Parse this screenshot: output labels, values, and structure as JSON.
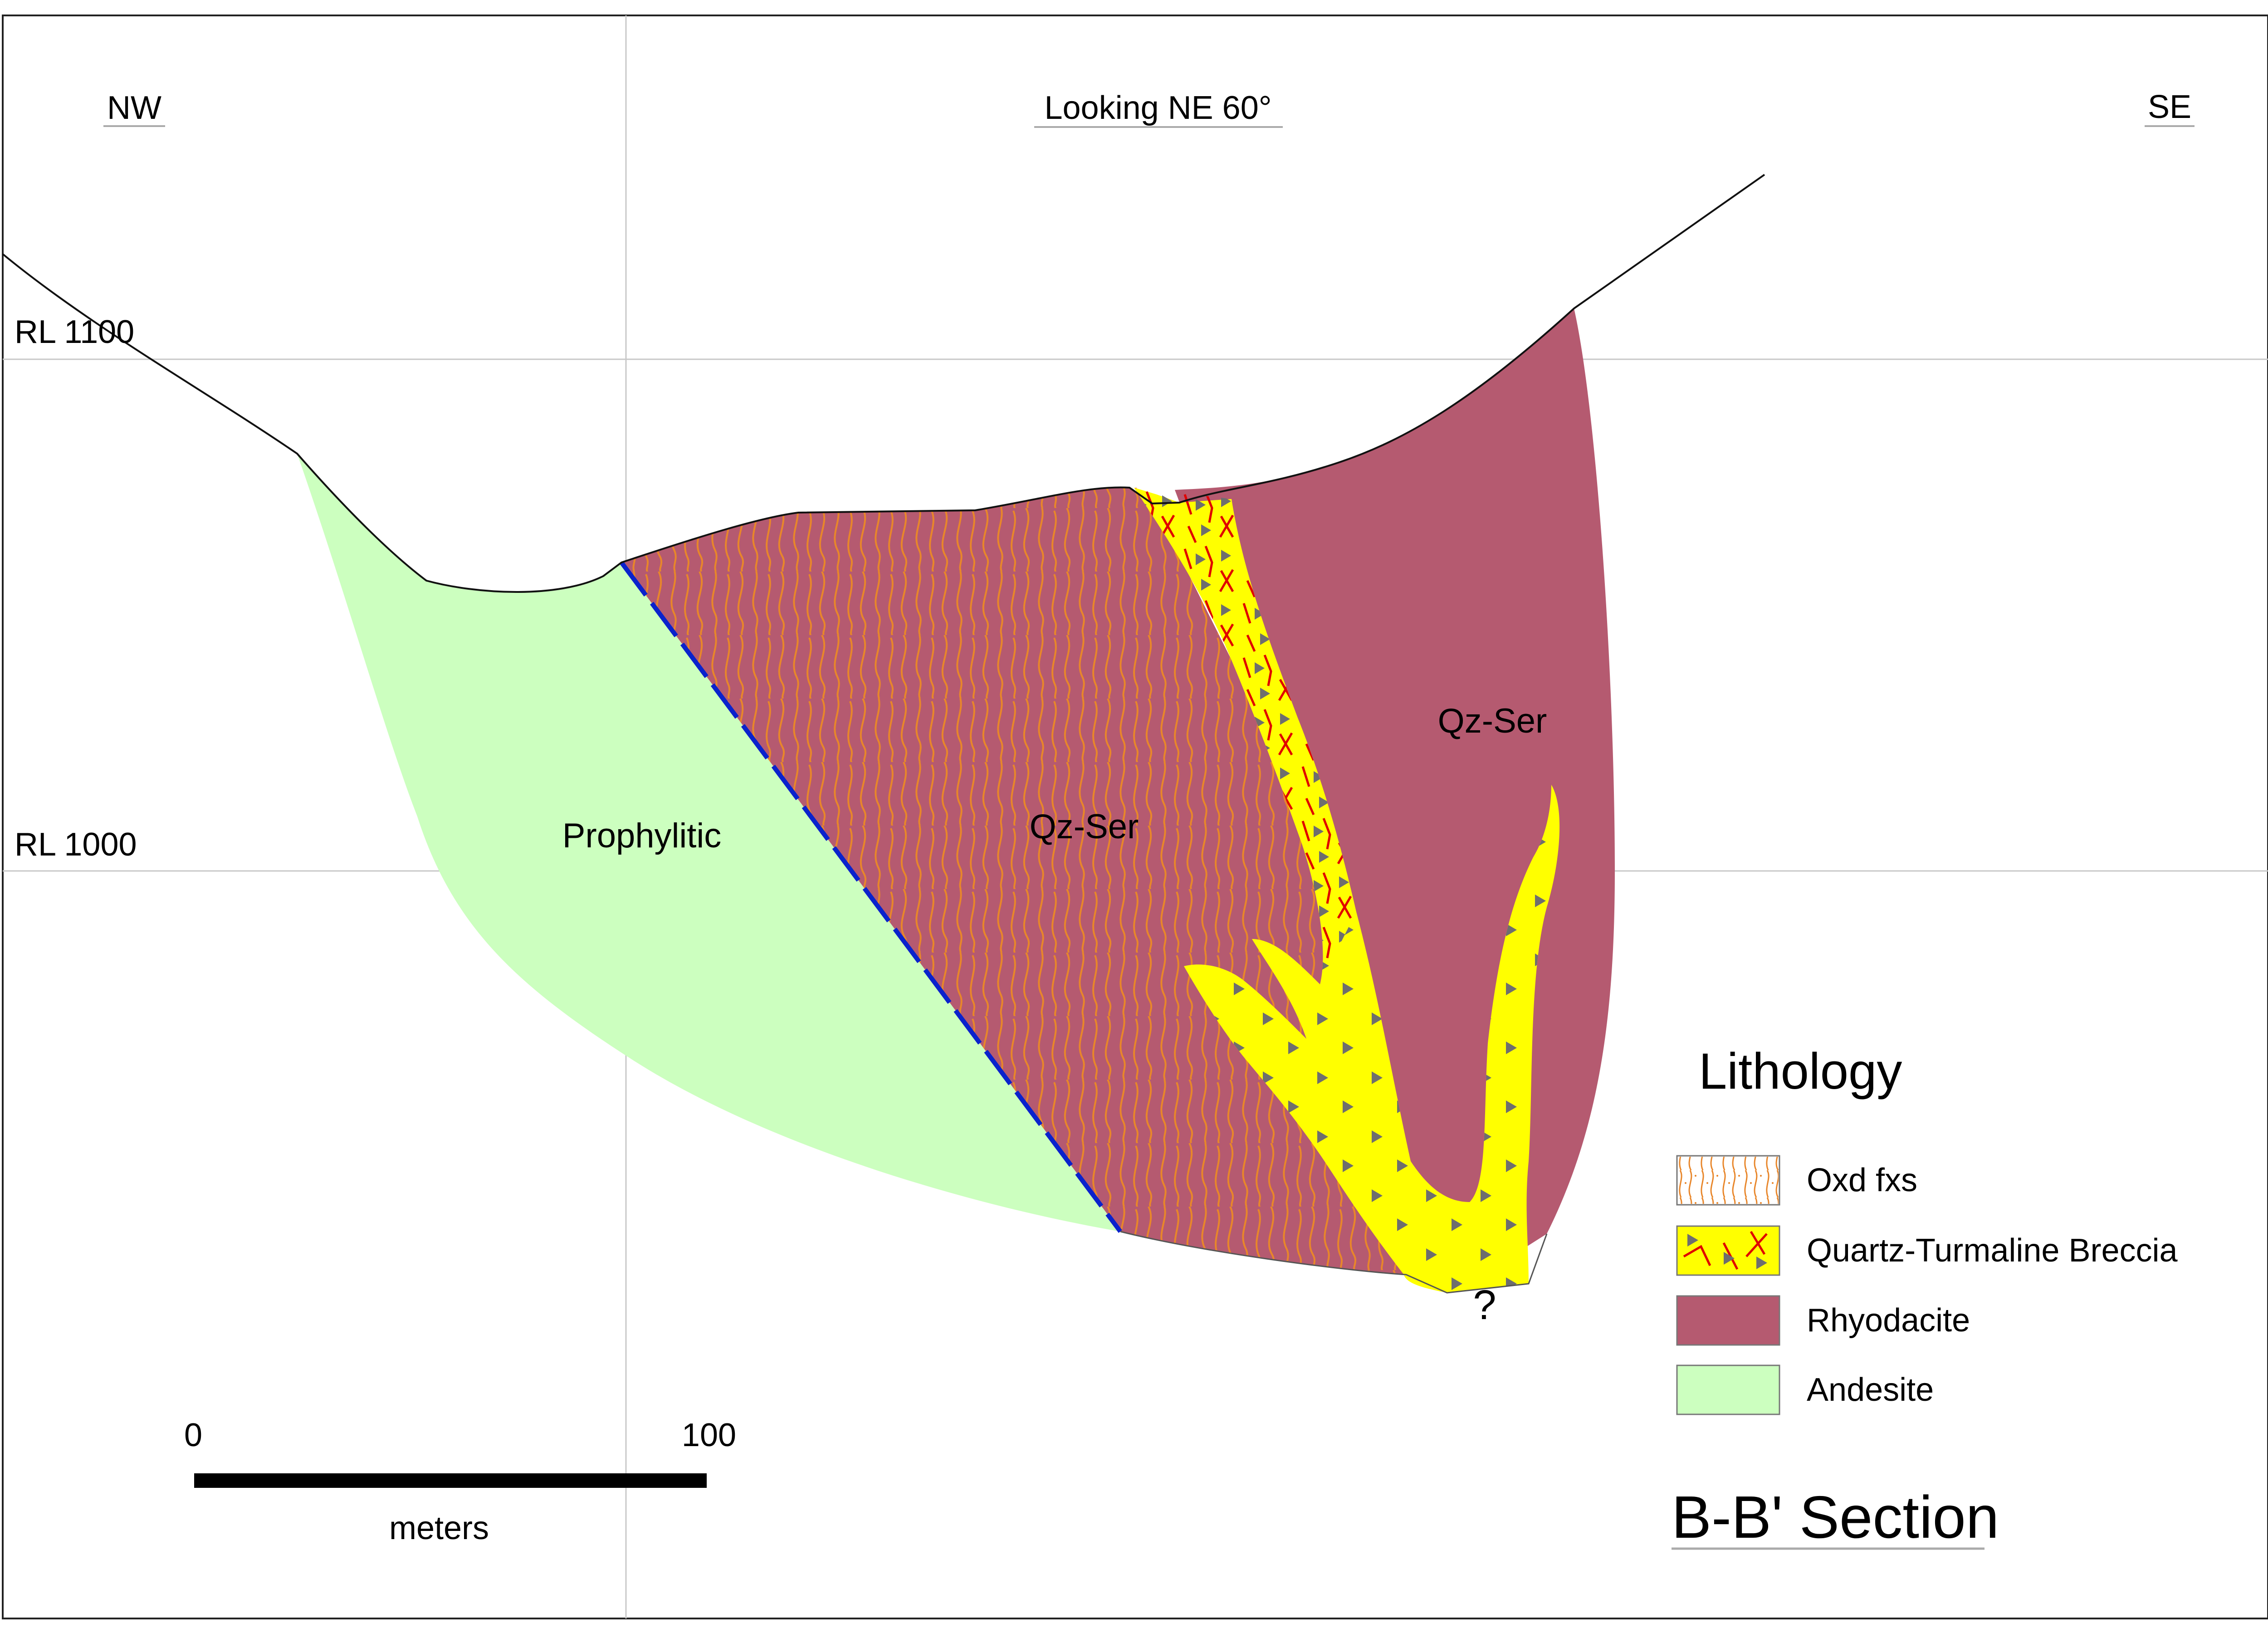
{
  "orientation": {
    "left": "NW",
    "center": "Looking NE 60°",
    "right": "SE"
  },
  "elevation_labels": {
    "upper": "RL 1100",
    "lower": "RL 1000"
  },
  "unit_labels": {
    "prophylitic": "Prophylitic",
    "qzser_center": "Qz-Ser",
    "qzser_right": "Qz-Ser"
  },
  "uncertainty_mark": "?",
  "legend": {
    "title": "Lithology",
    "items": [
      {
        "label": "Oxd fxs",
        "swatch": "oxidized-fractures"
      },
      {
        "label": "Quartz-Turmaline Breccia",
        "swatch": "breccia"
      },
      {
        "label": "Rhyodacite",
        "swatch": "rhyodacite"
      },
      {
        "label": "Andesite",
        "swatch": "andesite"
      }
    ]
  },
  "scale_bar": {
    "start_label": "0",
    "end_label": "100",
    "unit_label": "meters"
  },
  "section_title": "B-B' Section",
  "colors": {
    "andesite": "#ccffbf",
    "rhyodacite": "#b55a70",
    "breccia": "#ffff00",
    "fracture_orange": "#e8862a",
    "breccia_fracture_red": "#e00000",
    "breccia_clast": "#6e6e6e",
    "fault": "#0a22cc",
    "grid": "#c8c8c8",
    "frame": "#222222"
  }
}
